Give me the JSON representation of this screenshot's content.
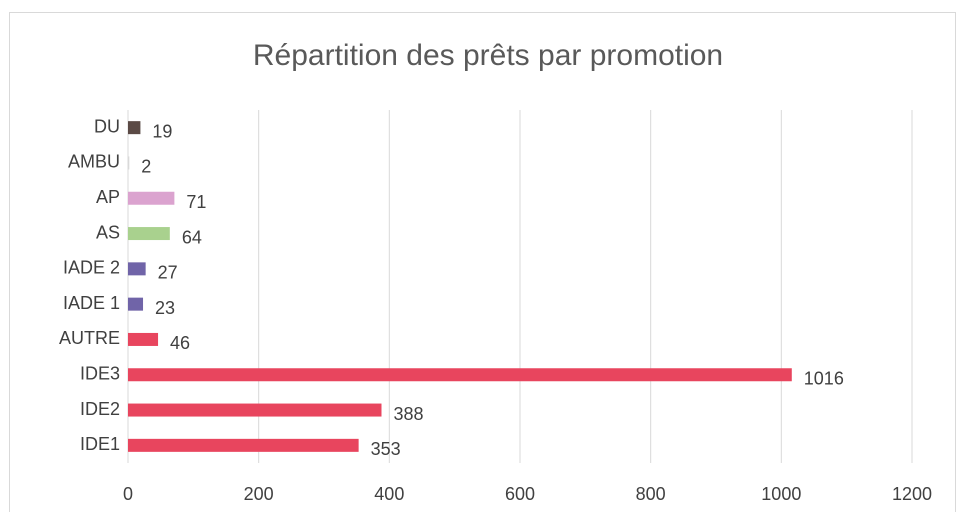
{
  "chart_data": {
    "type": "bar",
    "orientation": "horizontal",
    "title": "Répartition des prêts par promotion",
    "categories": [
      "DU",
      "AMBU",
      "AP",
      "AS",
      "IADE 2",
      "IADE 1",
      "AUTRE",
      "IDE3",
      "IDE2",
      "IDE1"
    ],
    "values": [
      19,
      2,
      71,
      64,
      27,
      23,
      46,
      1016,
      388,
      353
    ],
    "colors": [
      "#5b4a45",
      "#d9d9d9",
      "#dba3cf",
      "#a9d18e",
      "#7064a8",
      "#7064a8",
      "#e8455e",
      "#e8455e",
      "#e8455e",
      "#e8455e"
    ],
    "xlim": [
      0,
      1200
    ],
    "xticks": [
      0,
      200,
      400,
      600,
      800,
      1000,
      1200
    ],
    "grid": true
  }
}
